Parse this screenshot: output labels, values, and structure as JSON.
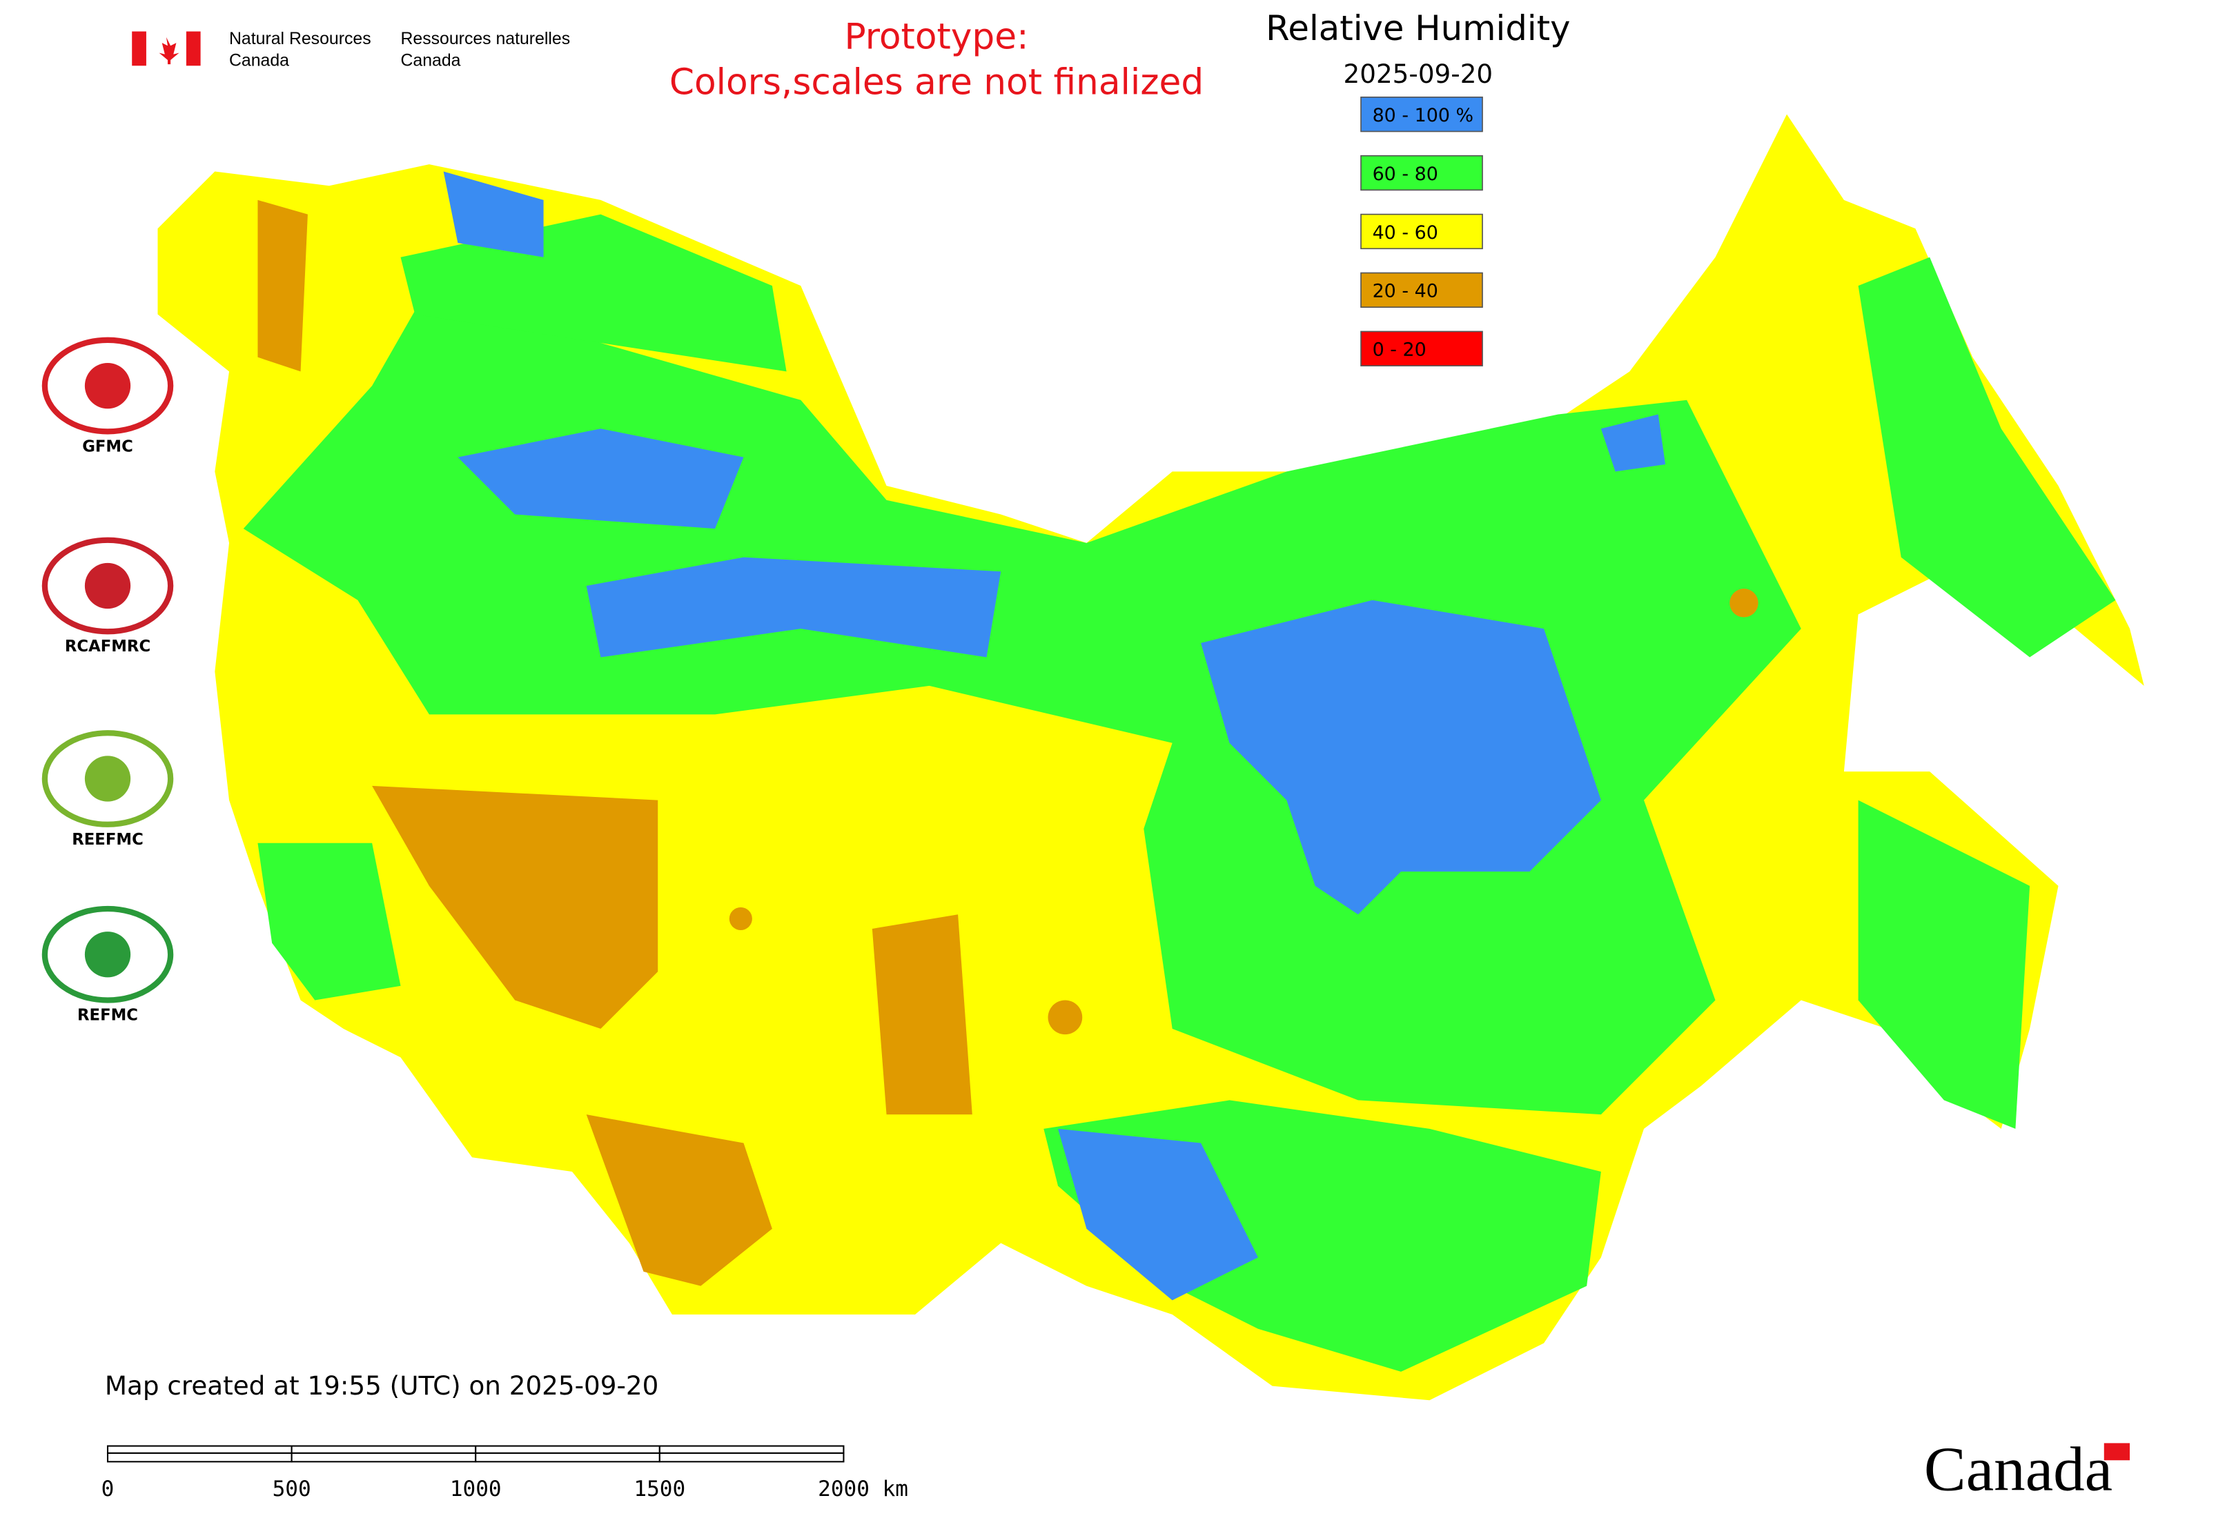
{
  "header": {
    "agency_en_1": "Natural Resources",
    "agency_en_2": "Canada",
    "agency_fr_1": "Ressources naturelles",
    "agency_fr_2": "Canada",
    "notice_1": "Prototype:",
    "notice_2": "Colors,scales are not finalized"
  },
  "map": {
    "title": "Relative Humidity",
    "date": "2025-09-20",
    "legend": [
      {
        "label": "80 - 100 %",
        "color": "#3a8cf2"
      },
      {
        "label": "60 - 80",
        "color": "#33ff33"
      },
      {
        "label": "40 - 60",
        "color": "#ffff00"
      },
      {
        "label": "20 - 40",
        "color": "#e09a00"
      },
      {
        "label": "0 - 20",
        "color": "#ff0000"
      }
    ],
    "created_note": "Map created at 19:55 (UTC) on 2025-09-20"
  },
  "scale_bar": {
    "labels": [
      "0",
      "500",
      "1000",
      "1500",
      "2000 km"
    ]
  },
  "logos": [
    "GFMC",
    "RCAFMRC",
    "REEFMC",
    "REFMC"
  ],
  "wordmark": "Canada"
}
